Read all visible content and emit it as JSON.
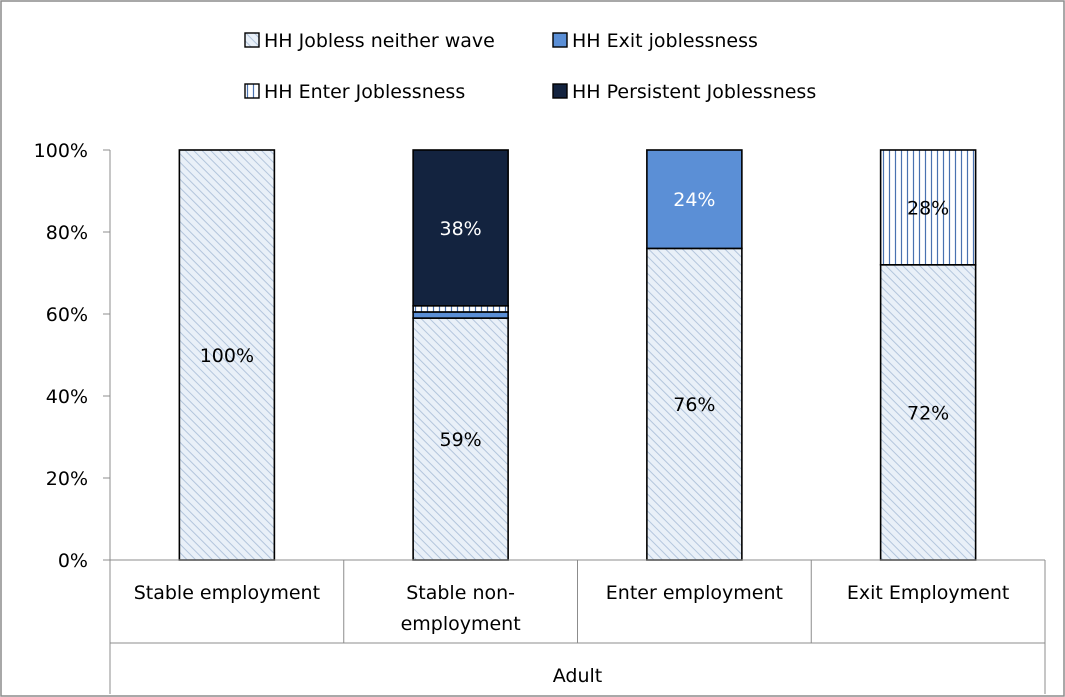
{
  "chart_data": {
    "type": "bar",
    "stacked": true,
    "categories": [
      "Stable employment",
      "Stable non-employment",
      "Enter employment",
      "Exit Employment"
    ],
    "category_lines": [
      [
        "Stable employment"
      ],
      [
        "Stable non-",
        "employment"
      ],
      [
        "Enter employment"
      ],
      [
        "Exit Employment"
      ]
    ],
    "group_label": "Adult",
    "ylim": [
      0,
      100
    ],
    "y_ticks": [
      "0%",
      "20%",
      "40%",
      "60%",
      "80%",
      "100%"
    ],
    "legend_position": "top",
    "series": [
      {
        "name": "HH Jobless neither wave",
        "values": [
          100,
          59,
          76,
          72
        ],
        "labels": [
          "100%",
          "59%",
          "76%",
          "72%"
        ],
        "fill": "#e6eef7",
        "pattern": "diagonal",
        "label_color": "#000000"
      },
      {
        "name": "HH Exit joblessness",
        "values": [
          0,
          1.5,
          24,
          0
        ],
        "labels": [
          "",
          "",
          "24%",
          ""
        ],
        "fill": "#5b8fd6",
        "pattern": "solid",
        "label_color": "#ffffff"
      },
      {
        "name": "HH Enter Joblessness",
        "values": [
          0,
          1.5,
          0,
          28
        ],
        "labels": [
          "",
          "",
          "",
          "28%"
        ],
        "fill": "#ffffff",
        "pattern": "vertical",
        "label_color": "#000000"
      },
      {
        "name": "HH Persistent Joblessness",
        "values": [
          0,
          38,
          0,
          0
        ],
        "labels": [
          "",
          "38%",
          "",
          ""
        ],
        "fill": "#13233f",
        "pattern": "solid",
        "label_color": "#ffffff"
      }
    ],
    "legend_order": [
      0,
      1,
      2,
      3
    ],
    "colors": {
      "border": "#000000",
      "frame": "#8c8c8c",
      "diag_line": "#a9bdd6",
      "vert_line": "#4a72b0"
    }
  }
}
